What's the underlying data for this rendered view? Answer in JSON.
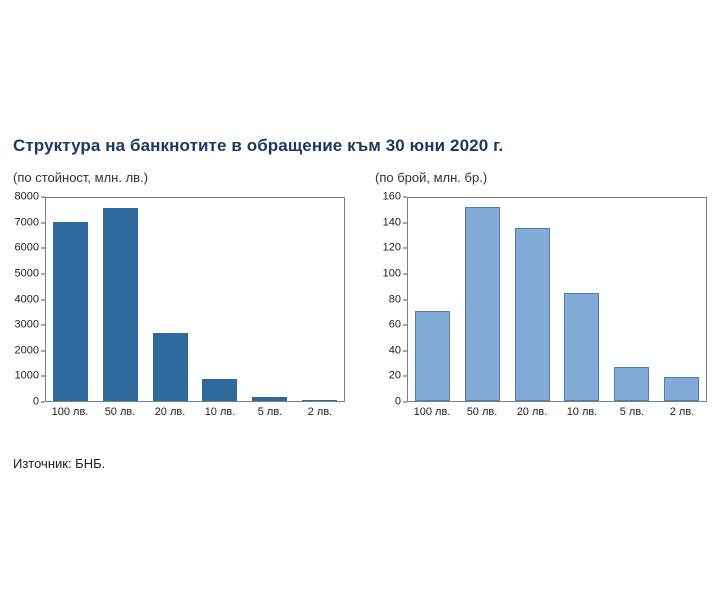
{
  "page": {
    "title": "Структура на банкнотите в обращение към 30 юни 2020 г.",
    "source": "Източник: БНБ."
  },
  "colors": {
    "title": "#1f3864",
    "left_bars": "#2e6a9e",
    "right_bars": "#82abd8",
    "right_bar_border": "#4d7fb5",
    "axis_frame": "#808080"
  },
  "chart_data": [
    {
      "type": "bar",
      "title": "(по стойност, млн. лв.)",
      "categories": [
        "100 лв.",
        "50 лв.",
        "20 лв.",
        "10 лв.",
        "5 лв.",
        "2 лв."
      ],
      "values": [
        7050,
        7600,
        2700,
        850,
        150,
        40
      ],
      "xlabel": "",
      "ylabel": "",
      "ylim": [
        0,
        8000
      ],
      "ytick_step": 1000,
      "grid": false,
      "legend": "none",
      "bar_color": "#2e6a9e",
      "bar_border": ""
    },
    {
      "type": "bar",
      "title": "(по брой, млн. бр.)",
      "categories": [
        "100 лв.",
        "50 лв.",
        "20 лв.",
        "10 лв.",
        "5 лв.",
        "2 лв."
      ],
      "values": [
        71,
        153,
        136,
        85,
        27,
        19
      ],
      "xlabel": "",
      "ylabel": "",
      "ylim": [
        0,
        160
      ],
      "ytick_step": 20,
      "grid": false,
      "legend": "none",
      "bar_color": "#82abd8",
      "bar_border": "#4d7fb5"
    }
  ]
}
